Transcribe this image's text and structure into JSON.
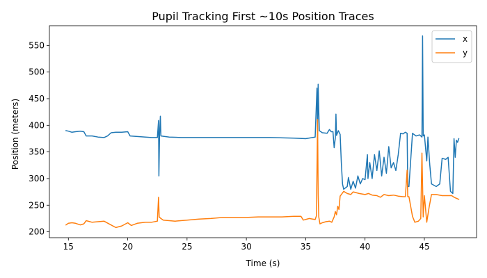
{
  "chart_data": {
    "type": "line",
    "title": "Pupil Tracking First ~10s Position Traces",
    "xlabel": "Time (s)",
    "ylabel": "Position (meters)",
    "xlim": [
      13.4,
      49.4
    ],
    "ylim": [
      189,
      587
    ],
    "xticks": [
      15,
      20,
      25,
      30,
      35,
      40,
      45
    ],
    "yticks": [
      200,
      250,
      300,
      350,
      400,
      450,
      500,
      550
    ],
    "grid": false,
    "legend_position": "top-right",
    "series": [
      {
        "name": "x",
        "color": "#1f77b4",
        "points": [
          [
            14.8,
            390
          ],
          [
            15.0,
            389
          ],
          [
            15.3,
            387
          ],
          [
            15.6,
            388
          ],
          [
            16.0,
            389
          ],
          [
            16.3,
            388
          ],
          [
            16.5,
            380
          ],
          [
            17.0,
            380
          ],
          [
            17.5,
            378
          ],
          [
            18.0,
            377
          ],
          [
            18.3,
            380
          ],
          [
            18.6,
            386
          ],
          [
            19.0,
            387
          ],
          [
            19.5,
            387
          ],
          [
            20.0,
            388
          ],
          [
            20.2,
            380
          ],
          [
            20.8,
            379
          ],
          [
            21.5,
            378
          ],
          [
            22.0,
            377
          ],
          [
            22.5,
            377
          ],
          [
            22.6,
            409
          ],
          [
            22.63,
            305
          ],
          [
            22.68,
            380
          ],
          [
            22.75,
            417
          ],
          [
            22.8,
            380
          ],
          [
            23.5,
            378
          ],
          [
            24.5,
            377
          ],
          [
            26.0,
            377
          ],
          [
            28.0,
            377
          ],
          [
            30.0,
            377
          ],
          [
            32.0,
            377
          ],
          [
            34.0,
            376
          ],
          [
            35.0,
            375
          ],
          [
            35.8,
            378
          ],
          [
            35.95,
            470
          ],
          [
            36.0,
            380
          ],
          [
            36.05,
            477
          ],
          [
            36.1,
            428
          ],
          [
            36.15,
            390
          ],
          [
            36.4,
            386
          ],
          [
            36.8,
            385
          ],
          [
            37.0,
            392
          ],
          [
            37.15,
            388
          ],
          [
            37.3,
            388
          ],
          [
            37.4,
            358
          ],
          [
            37.5,
            376
          ],
          [
            37.55,
            421
          ],
          [
            37.6,
            381
          ],
          [
            37.75,
            390
          ],
          [
            37.9,
            383
          ],
          [
            38.0,
            330
          ],
          [
            38.1,
            290
          ],
          [
            38.2,
            280
          ],
          [
            38.5,
            285
          ],
          [
            38.6,
            302
          ],
          [
            38.8,
            280
          ],
          [
            39.0,
            295
          ],
          [
            39.2,
            282
          ],
          [
            39.4,
            305
          ],
          [
            39.6,
            290
          ],
          [
            39.8,
            300
          ],
          [
            40.0,
            298
          ],
          [
            40.2,
            345
          ],
          [
            40.25,
            300
          ],
          [
            40.4,
            330
          ],
          [
            40.6,
            300
          ],
          [
            40.8,
            345
          ],
          [
            41.0,
            315
          ],
          [
            41.2,
            352
          ],
          [
            41.4,
            305
          ],
          [
            41.6,
            340
          ],
          [
            41.8,
            310
          ],
          [
            42.0,
            360
          ],
          [
            42.2,
            320
          ],
          [
            42.4,
            330
          ],
          [
            42.6,
            315
          ],
          [
            42.8,
            345
          ],
          [
            43.0,
            385
          ],
          [
            43.2,
            384
          ],
          [
            43.4,
            387
          ],
          [
            43.55,
            385
          ],
          [
            43.6,
            285
          ],
          [
            43.7,
            285
          ],
          [
            44.0,
            385
          ],
          [
            44.3,
            380
          ],
          [
            44.6,
            382
          ],
          [
            44.8,
            378
          ],
          [
            44.85,
            568
          ],
          [
            44.9,
            380
          ],
          [
            45.0,
            382
          ],
          [
            45.2,
            333
          ],
          [
            45.3,
            378
          ],
          [
            45.45,
            328
          ],
          [
            45.6,
            290
          ],
          [
            46.0,
            285
          ],
          [
            46.3,
            290
          ],
          [
            46.5,
            338
          ],
          [
            46.8,
            336
          ],
          [
            47.0,
            340
          ],
          [
            47.2,
            276
          ],
          [
            47.4,
            272
          ],
          [
            47.5,
            375
          ],
          [
            47.6,
            340
          ],
          [
            47.7,
            372
          ],
          [
            47.8,
            368
          ],
          [
            47.9,
            375
          ]
        ]
      },
      {
        "name": "y",
        "color": "#ff7f0e",
        "points": [
          [
            14.8,
            213
          ],
          [
            15.0,
            216
          ],
          [
            15.3,
            217
          ],
          [
            15.6,
            216
          ],
          [
            16.0,
            213
          ],
          [
            16.3,
            215
          ],
          [
            16.5,
            221
          ],
          [
            17.0,
            218
          ],
          [
            17.5,
            219
          ],
          [
            18.0,
            220
          ],
          [
            18.5,
            214
          ],
          [
            19.0,
            208
          ],
          [
            19.5,
            211
          ],
          [
            20.0,
            217
          ],
          [
            20.3,
            212
          ],
          [
            20.8,
            216
          ],
          [
            21.5,
            218
          ],
          [
            22.0,
            218
          ],
          [
            22.5,
            220
          ],
          [
            22.6,
            265
          ],
          [
            22.65,
            228
          ],
          [
            22.8,
            225
          ],
          [
            23.0,
            222
          ],
          [
            24.0,
            220
          ],
          [
            25.0,
            222
          ],
          [
            26.0,
            224
          ],
          [
            27.0,
            225
          ],
          [
            28.0,
            227
          ],
          [
            29.0,
            227
          ],
          [
            30.0,
            227
          ],
          [
            31.0,
            228
          ],
          [
            32.0,
            228
          ],
          [
            33.0,
            228
          ],
          [
            34.0,
            229
          ],
          [
            34.6,
            229
          ],
          [
            34.8,
            222
          ],
          [
            35.3,
            225
          ],
          [
            35.8,
            223
          ],
          [
            35.9,
            230
          ],
          [
            36.0,
            411
          ],
          [
            36.05,
            272
          ],
          [
            36.1,
            228
          ],
          [
            36.2,
            215
          ],
          [
            36.4,
            217
          ],
          [
            36.7,
            219
          ],
          [
            37.0,
            220
          ],
          [
            37.2,
            218
          ],
          [
            37.4,
            228
          ],
          [
            37.5,
            238
          ],
          [
            37.6,
            232
          ],
          [
            37.7,
            248
          ],
          [
            37.8,
            242
          ],
          [
            37.9,
            267
          ],
          [
            38.0,
            270
          ],
          [
            38.2,
            276
          ],
          [
            38.5,
            272
          ],
          [
            38.8,
            270
          ],
          [
            39.0,
            275
          ],
          [
            39.5,
            272
          ],
          [
            40.0,
            270
          ],
          [
            40.3,
            272
          ],
          [
            40.6,
            269
          ],
          [
            41.0,
            268
          ],
          [
            41.3,
            265
          ],
          [
            41.6,
            270
          ],
          [
            42.0,
            268
          ],
          [
            42.4,
            269
          ],
          [
            42.8,
            267
          ],
          [
            43.2,
            266
          ],
          [
            43.4,
            266
          ],
          [
            43.55,
            316
          ],
          [
            43.6,
            266
          ],
          [
            43.7,
            266
          ],
          [
            44.0,
            229
          ],
          [
            44.2,
            218
          ],
          [
            44.5,
            220
          ],
          [
            44.7,
            225
          ],
          [
            44.8,
            348
          ],
          [
            44.9,
            228
          ],
          [
            45.0,
            268
          ],
          [
            45.2,
            218
          ],
          [
            45.4,
            246
          ],
          [
            45.6,
            270
          ],
          [
            46.0,
            270
          ],
          [
            46.5,
            268
          ],
          [
            47.0,
            268
          ],
          [
            47.3,
            268
          ],
          [
            47.5,
            265
          ],
          [
            47.8,
            262
          ],
          [
            47.9,
            261
          ]
        ]
      }
    ]
  }
}
